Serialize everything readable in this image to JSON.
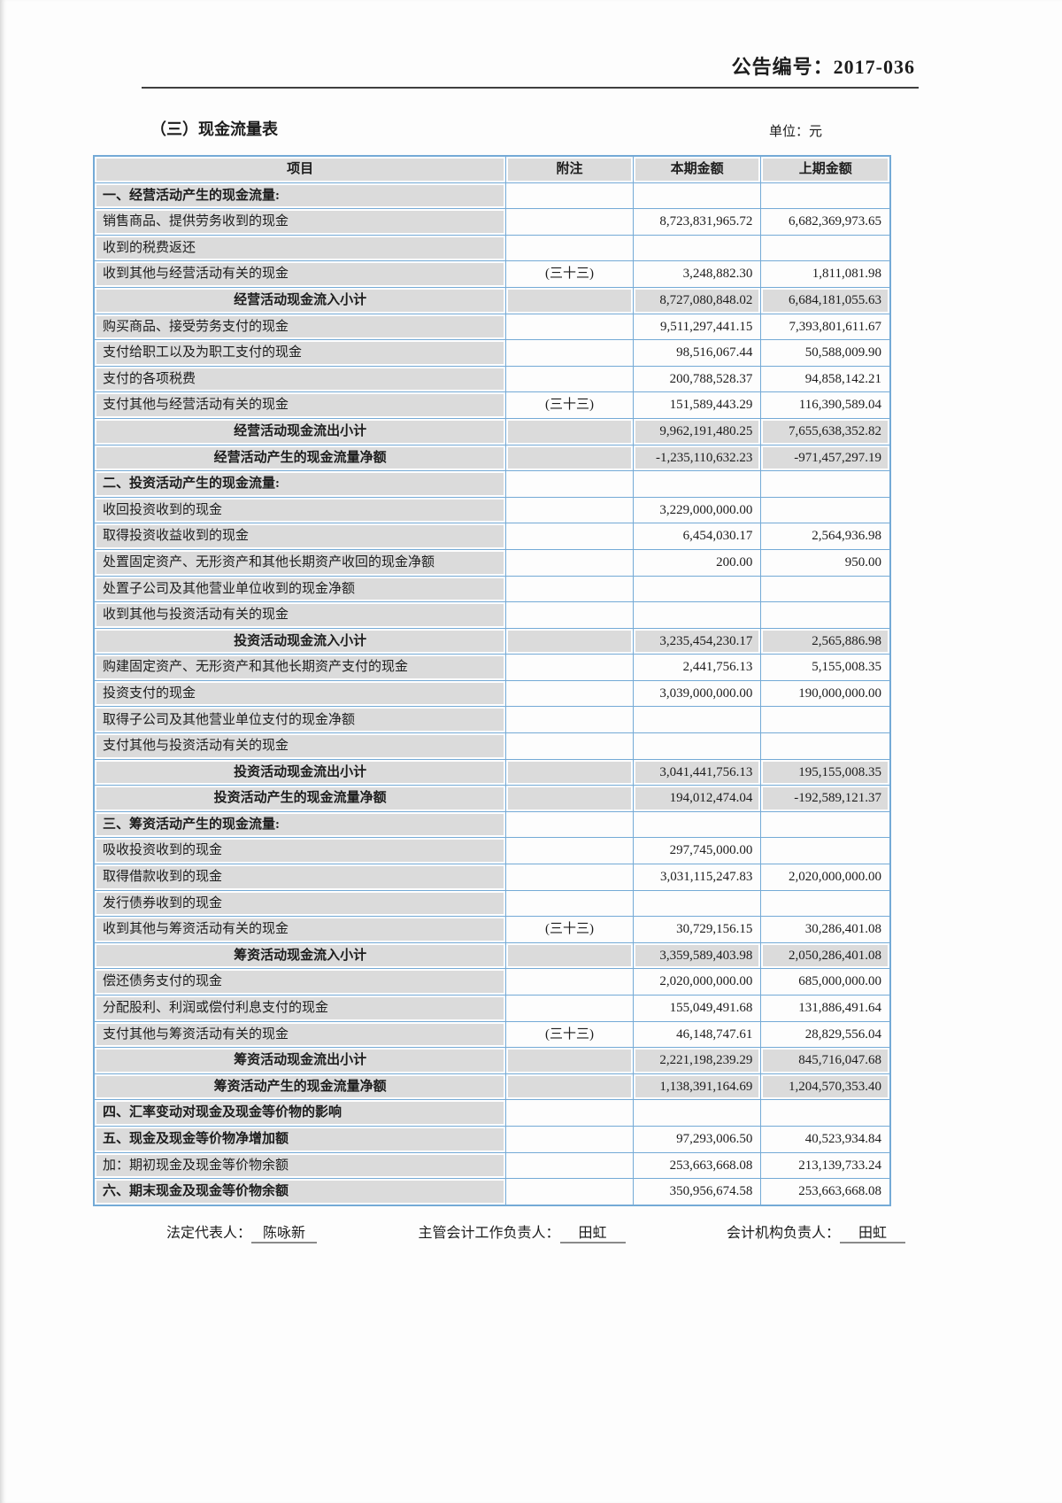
{
  "header": {
    "announcement_no": "公告编号：2017-036",
    "section_title": "（三）现金流量表",
    "unit_label": "单位：元"
  },
  "table": {
    "headers": [
      "项目",
      "附注",
      "本期金额",
      "上期金额"
    ],
    "rows": [
      {
        "item": "一、经营活动产生的现金流量:",
        "note": "",
        "current": "",
        "prior": "",
        "style": "section"
      },
      {
        "item": "销售商品、提供劳务收到的现金",
        "note": "",
        "current": "8,723,831,965.72",
        "prior": "6,682,369,973.65",
        "style": "normal"
      },
      {
        "item": "收到的税费返还",
        "note": "",
        "current": "",
        "prior": "",
        "style": "normal"
      },
      {
        "item": "收到其他与经营活动有关的现金",
        "note": "(三十三)",
        "current": "3,248,882.30",
        "prior": "1,811,081.98",
        "style": "normal"
      },
      {
        "item": "经营活动现金流入小计",
        "note": "",
        "current": "8,727,080,848.02",
        "prior": "6,684,181,055.63",
        "style": "subtotal"
      },
      {
        "item": "购买商品、接受劳务支付的现金",
        "note": "",
        "current": "9,511,297,441.15",
        "prior": "7,393,801,611.67",
        "style": "normal"
      },
      {
        "item": "支付给职工以及为职工支付的现金",
        "note": "",
        "current": "98,516,067.44",
        "prior": "50,588,009.90",
        "style": "normal"
      },
      {
        "item": "支付的各项税费",
        "note": "",
        "current": "200,788,528.37",
        "prior": "94,858,142.21",
        "style": "normal"
      },
      {
        "item": "支付其他与经营活动有关的现金",
        "note": "(三十三)",
        "current": "151,589,443.29",
        "prior": "116,390,589.04",
        "style": "normal"
      },
      {
        "item": "经营活动现金流出小计",
        "note": "",
        "current": "9,962,191,480.25",
        "prior": "7,655,638,352.82",
        "style": "subtotal"
      },
      {
        "item": "经营活动产生的现金流量净额",
        "note": "",
        "current": "-1,235,110,632.23",
        "prior": "-971,457,297.19",
        "style": "subtotal"
      },
      {
        "item": "二、投资活动产生的现金流量:",
        "note": "",
        "current": "",
        "prior": "",
        "style": "section"
      },
      {
        "item": "收回投资收到的现金",
        "note": "",
        "current": "3,229,000,000.00",
        "prior": "",
        "style": "normal"
      },
      {
        "item": "取得投资收益收到的现金",
        "note": "",
        "current": "6,454,030.17",
        "prior": "2,564,936.98",
        "style": "normal"
      },
      {
        "item": "处置固定资产、无形资产和其他长期资产收回的现金净额",
        "note": "",
        "current": "200.00",
        "prior": "950.00",
        "style": "normal"
      },
      {
        "item": "处置子公司及其他营业单位收到的现金净额",
        "note": "",
        "current": "",
        "prior": "",
        "style": "normal"
      },
      {
        "item": "收到其他与投资活动有关的现金",
        "note": "",
        "current": "",
        "prior": "",
        "style": "normal"
      },
      {
        "item": "投资活动现金流入小计",
        "note": "",
        "current": "3,235,454,230.17",
        "prior": "2,565,886.98",
        "style": "subtotal"
      },
      {
        "item": "购建固定资产、无形资产和其他长期资产支付的现金",
        "note": "",
        "current": "2,441,756.13",
        "prior": "5,155,008.35",
        "style": "normal"
      },
      {
        "item": "投资支付的现金",
        "note": "",
        "current": "3,039,000,000.00",
        "prior": "190,000,000.00",
        "style": "normal"
      },
      {
        "item": "取得子公司及其他营业单位支付的现金净额",
        "note": "",
        "current": "",
        "prior": "",
        "style": "normal"
      },
      {
        "item": "支付其他与投资活动有关的现金",
        "note": "",
        "current": "",
        "prior": "",
        "style": "normal"
      },
      {
        "item": "投资活动现金流出小计",
        "note": "",
        "current": "3,041,441,756.13",
        "prior": "195,155,008.35",
        "style": "subtotal"
      },
      {
        "item": "投资活动产生的现金流量净额",
        "note": "",
        "current": "194,012,474.04",
        "prior": "-192,589,121.37",
        "style": "subtotal"
      },
      {
        "item": "三、筹资活动产生的现金流量:",
        "note": "",
        "current": "",
        "prior": "",
        "style": "section"
      },
      {
        "item": "吸收投资收到的现金",
        "note": "",
        "current": "297,745,000.00",
        "prior": "",
        "style": "normal"
      },
      {
        "item": "取得借款收到的现金",
        "note": "",
        "current": "3,031,115,247.83",
        "prior": "2,020,000,000.00",
        "style": "normal"
      },
      {
        "item": "发行债券收到的现金",
        "note": "",
        "current": "",
        "prior": "",
        "style": "normal"
      },
      {
        "item": "收到其他与筹资活动有关的现金",
        "note": "(三十三)",
        "current": "30,729,156.15",
        "prior": "30,286,401.08",
        "style": "normal"
      },
      {
        "item": "筹资活动现金流入小计",
        "note": "",
        "current": "3,359,589,403.98",
        "prior": "2,050,286,401.08",
        "style": "subtotal"
      },
      {
        "item": "偿还债务支付的现金",
        "note": "",
        "current": "2,020,000,000.00",
        "prior": "685,000,000.00",
        "style": "normal"
      },
      {
        "item": "分配股利、利润或偿付利息支付的现金",
        "note": "",
        "current": "155,049,491.68",
        "prior": "131,886,491.64",
        "style": "normal"
      },
      {
        "item": "支付其他与筹资活动有关的现金",
        "note": "(三十三)",
        "current": "46,148,747.61",
        "prior": "28,829,556.04",
        "style": "normal"
      },
      {
        "item": "筹资活动现金流出小计",
        "note": "",
        "current": "2,221,198,239.29",
        "prior": "845,716,047.68",
        "style": "subtotal"
      },
      {
        "item": "筹资活动产生的现金流量净额",
        "note": "",
        "current": "1,138,391,164.69",
        "prior": "1,204,570,353.40",
        "style": "subtotal"
      },
      {
        "item": "四、汇率变动对现金及现金等价物的影响",
        "note": "",
        "current": "",
        "prior": "",
        "style": "section"
      },
      {
        "item": "五、现金及现金等价物净增加额",
        "note": "",
        "current": "97,293,006.50",
        "prior": "40,523,934.84",
        "style": "section"
      },
      {
        "item": "加：期初现金及现金等价物余额",
        "note": "",
        "current": "253,663,668.08",
        "prior": "213,139,733.24",
        "style": "normal"
      },
      {
        "item": "六、期末现金及现金等价物余额",
        "note": "",
        "current": "350,956,674.58",
        "prior": "253,663,668.08",
        "style": "section"
      }
    ]
  },
  "footer": {
    "legal_rep_label": "法定代表人：",
    "legal_rep_name": "陈咏新",
    "chief_accountant_label": "主管会计工作负责人：",
    "chief_accountant_name": "田虹",
    "accounting_dept_label": "会计机构负责人：",
    "accounting_dept_name": "田虹"
  },
  "colors": {
    "table_border": "#74aad6",
    "shaded_cell": "#dbdbdb",
    "cell_inner_ring": "#ffffff",
    "text": "#1c1c1c",
    "header_rule": "#3f3f3f"
  }
}
